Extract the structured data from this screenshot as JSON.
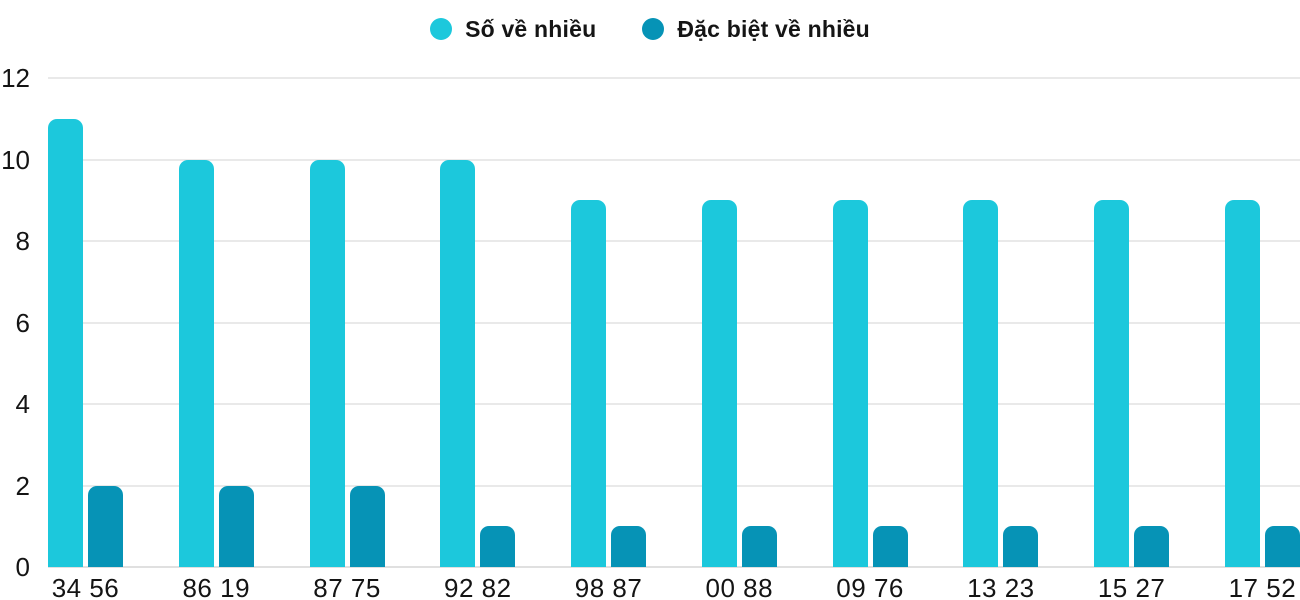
{
  "chart_data": {
    "type": "bar",
    "title": "",
    "xlabel": "",
    "ylabel": "",
    "categories": [
      "34 56",
      "86 19",
      "87 75",
      "92 82",
      "98 87",
      "00 88",
      "09 76",
      "13 23",
      "15 27",
      "17 52"
    ],
    "series": [
      {
        "name": "Số về nhiều",
        "color": "#1cc8dc",
        "values": [
          11,
          10,
          10,
          10,
          9,
          9,
          9,
          9,
          9,
          9
        ]
      },
      {
        "name": "Đặc biệt về nhiều",
        "color": "#0693b6",
        "values": [
          2,
          2,
          2,
          1,
          1,
          1,
          1,
          1,
          1,
          1
        ]
      }
    ],
    "ylim": [
      0,
      12
    ],
    "yticks": [
      0,
      2,
      4,
      6,
      8,
      10,
      12
    ],
    "grid": true,
    "legend_position": "top-center"
  },
  "colors": {
    "gridline": "#e9e9e9",
    "baseline": "#e0e0e0",
    "tick_text": "#141414",
    "background": "#ffffff"
  }
}
